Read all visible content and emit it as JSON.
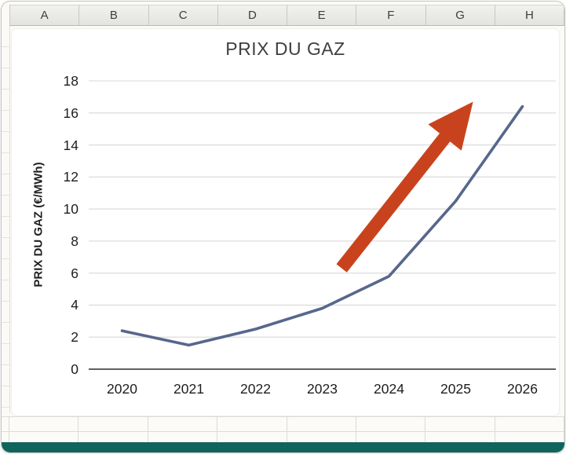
{
  "sheet": {
    "columns": [
      "A",
      "B",
      "C",
      "D",
      "E",
      "F",
      "G",
      "H"
    ],
    "footer_color": "#10645c"
  },
  "chart_data": {
    "type": "line",
    "title": "PRIX DU GAZ",
    "xlabel": "",
    "ylabel": "PRIX DU GAZ (€/MWh)",
    "categories": [
      "2020",
      "2021",
      "2022",
      "2023",
      "2024",
      "2025",
      "2026"
    ],
    "values": [
      2.4,
      1.5,
      2.5,
      3.8,
      5.8,
      10.5,
      16.4
    ],
    "ylim": [
      0,
      18
    ],
    "yticks": [
      0,
      2,
      4,
      6,
      8,
      10,
      12,
      14,
      16,
      18
    ],
    "grid": true,
    "legend": "none",
    "line_color": "#57678c",
    "grid_color": "#d8d8d8",
    "axis_color": "#4a4a4a",
    "annotations": [
      {
        "type": "arrow",
        "from": [
          3.29,
          6.3
        ],
        "to": [
          5.26,
          16.7
        ],
        "color": "#c8431d"
      }
    ]
  }
}
